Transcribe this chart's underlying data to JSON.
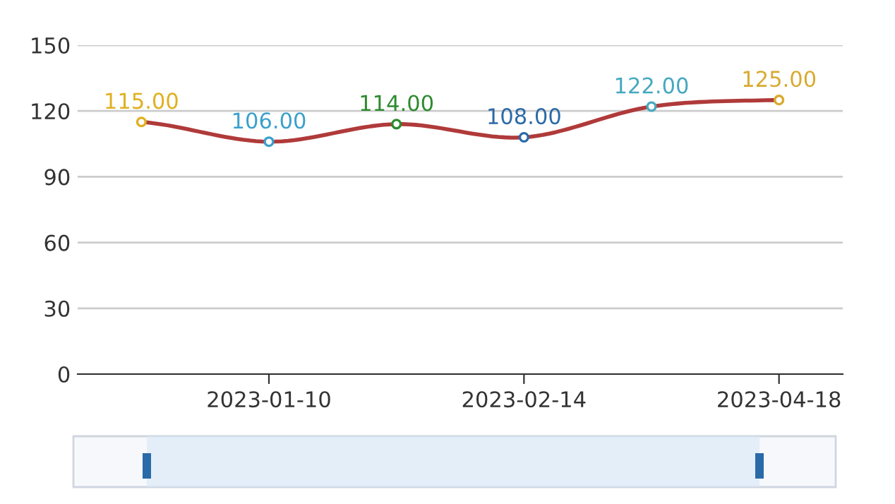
{
  "chart_data": {
    "type": "line",
    "categories": [
      null,
      "2023-01-10",
      null,
      "2023-02-14",
      null,
      "2023-04-18"
    ],
    "series": [
      {
        "color": "#b03a3a",
        "values": [
          115,
          106,
          114,
          108,
          122,
          125
        ],
        "value_labels": [
          "115.00",
          "106.00",
          "114.00",
          "108.00",
          "122.00",
          "125.00"
        ],
        "colors": [
          "#e0b020",
          "#3aa0cc",
          "#2e8b2e",
          "#2a6aa8",
          "#45a8c0",
          "#d8aa30"
        ]
      }
    ],
    "ylim": [
      0,
      150
    ],
    "yticks": [
      0,
      30,
      60,
      90,
      120,
      150
    ],
    "grid": "y",
    "marker": "circle",
    "legend": false
  }
}
